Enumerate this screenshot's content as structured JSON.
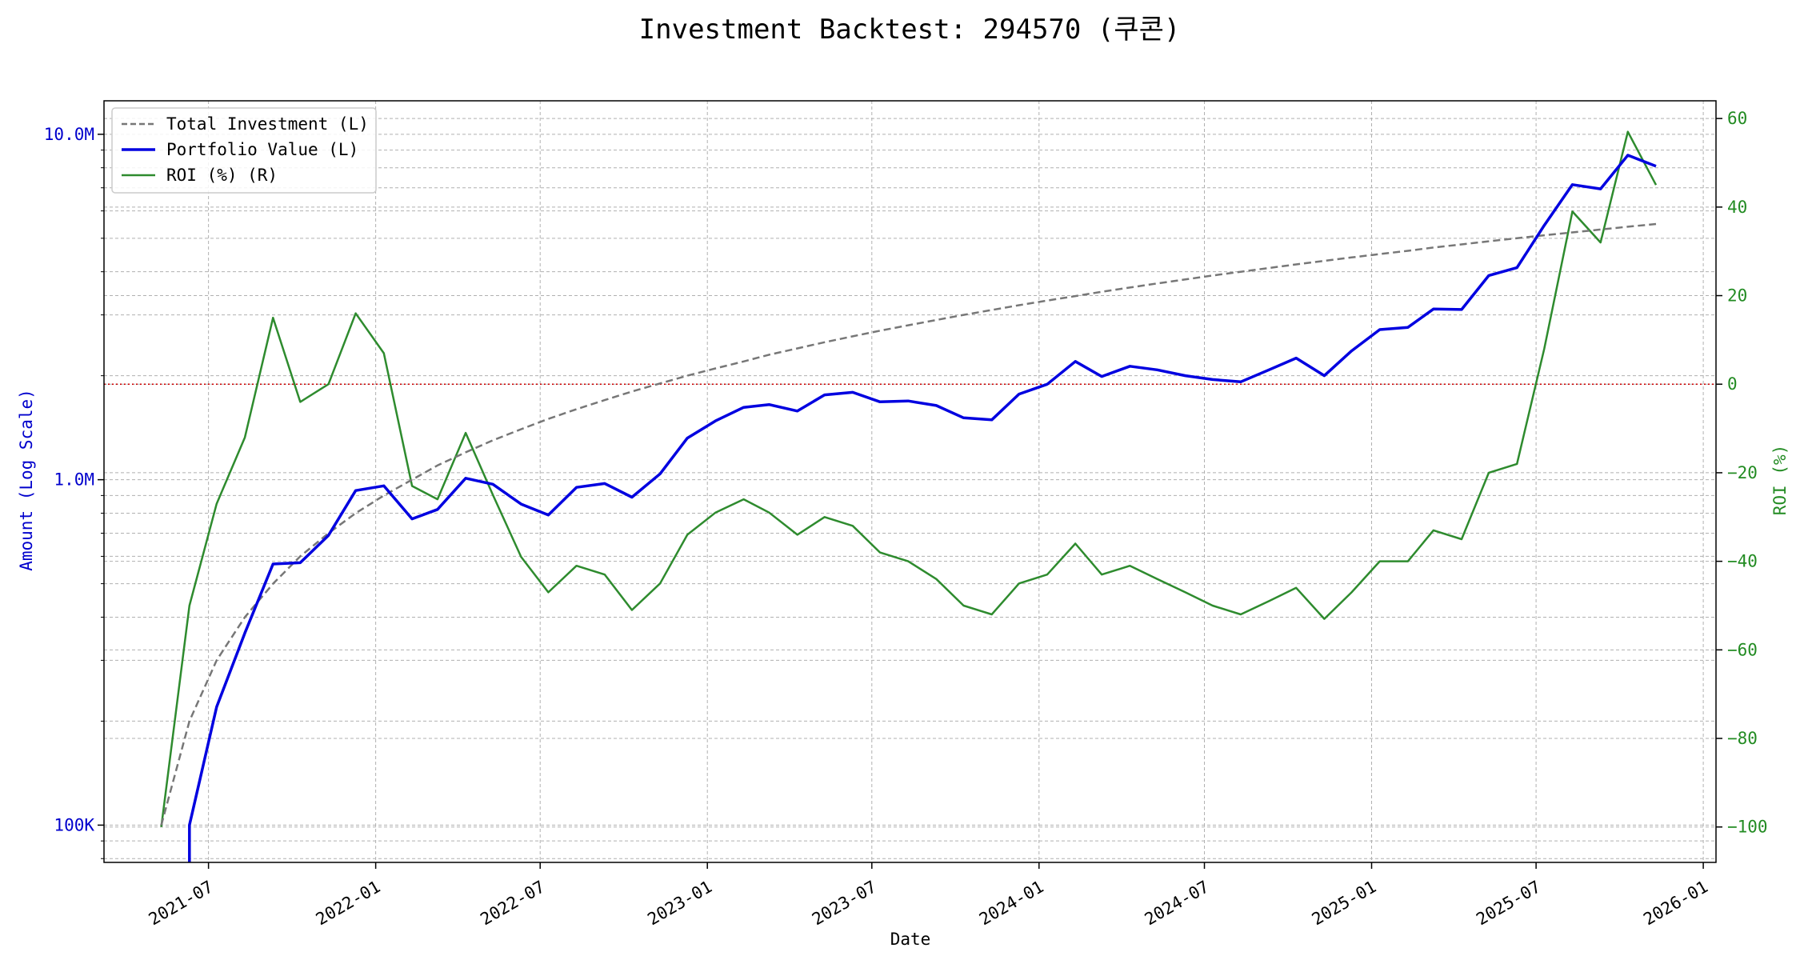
{
  "chart_data": {
    "type": "line",
    "title": "Investment Backtest: 294570 (쿠콘)",
    "xlabel": "Date",
    "ylabel_left": "Amount (Log Scale)",
    "ylabel_right": "ROI (%)",
    "left_axis": {
      "scale": "log",
      "range": [
        78000,
        12500000
      ],
      "ticks": [
        {
          "value": 100000,
          "label": "100K"
        },
        {
          "value": 1000000,
          "label": "1.0M"
        },
        {
          "value": 10000000,
          "label": "10.0M"
        }
      ],
      "color": "#0000cc"
    },
    "right_axis": {
      "scale": "linear",
      "range": [
        -108,
        64
      ],
      "ticks": [
        {
          "value": -100,
          "label": "−100"
        },
        {
          "value": -80,
          "label": "−80"
        },
        {
          "value": -60,
          "label": "−60"
        },
        {
          "value": -40,
          "label": "−40"
        },
        {
          "value": -20,
          "label": "−20"
        },
        {
          "value": 0,
          "label": "0"
        },
        {
          "value": 20,
          "label": "20"
        },
        {
          "value": 40,
          "label": "40"
        },
        {
          "value": 60,
          "label": "60"
        }
      ],
      "color": "#228b22"
    },
    "x_axis": {
      "range": [
        "2021-03-08",
        "2026-01-15"
      ],
      "ticks": [
        "2021-07",
        "2022-01",
        "2022-07",
        "2023-01",
        "2023-07",
        "2024-01",
        "2024-07",
        "2025-01",
        "2025-07",
        "2026-01"
      ]
    },
    "grid": true,
    "legend": {
      "placement": "upper left",
      "entries": [
        "Total Investment (L)",
        "Portfolio Value (L)",
        "ROI (%) (R)"
      ]
    },
    "zero_line": {
      "value": 0,
      "color": "#cc0000"
    },
    "series": [
      {
        "name": "Total Investment (L)",
        "axis": "left",
        "style": "dashed",
        "color": "#777777",
        "x": [
          "2021-05-10",
          "2021-06-10",
          "2021-07-10",
          "2021-08-10",
          "2021-09-10",
          "2021-10-10",
          "2021-11-10",
          "2021-12-10",
          "2022-01-10",
          "2022-02-10",
          "2022-03-10",
          "2022-04-10",
          "2022-05-10",
          "2022-06-10",
          "2022-07-10",
          "2022-08-10",
          "2022-09-10",
          "2022-10-10",
          "2022-11-10",
          "2022-12-10",
          "2023-01-10",
          "2023-02-10",
          "2023-03-10",
          "2023-04-10",
          "2023-05-10",
          "2023-06-10",
          "2023-07-10",
          "2023-08-10",
          "2023-09-10",
          "2023-10-10",
          "2023-11-10",
          "2023-12-10",
          "2024-01-10",
          "2024-02-10",
          "2024-03-10",
          "2024-04-10",
          "2024-05-10",
          "2024-06-10",
          "2024-07-10",
          "2024-08-10",
          "2024-09-10",
          "2024-10-10",
          "2024-11-10",
          "2024-12-10",
          "2025-01-10",
          "2025-02-10",
          "2025-03-10",
          "2025-04-10",
          "2025-05-10",
          "2025-06-10",
          "2025-07-10",
          "2025-08-10",
          "2025-09-10",
          "2025-10-10",
          "2025-11-10"
        ],
        "values": [
          100000,
          200000,
          300000,
          400000,
          500000,
          600000,
          700000,
          800000,
          900000,
          1000000,
          1100000,
          1200000,
          1300000,
          1400000,
          1500000,
          1600000,
          1700000,
          1800000,
          1900000,
          2000000,
          2100000,
          2200000,
          2300000,
          2400000,
          2500000,
          2600000,
          2700000,
          2800000,
          2900000,
          3000000,
          3100000,
          3200000,
          3300000,
          3400000,
          3500000,
          3600000,
          3700000,
          3800000,
          3900000,
          4000000,
          4100000,
          4200000,
          4300000,
          4400000,
          4500000,
          4600000,
          4700000,
          4800000,
          4900000,
          5000000,
          5100000,
          5200000,
          5300000,
          5400000,
          5500000
        ]
      },
      {
        "name": "Portfolio Value (L)",
        "axis": "left",
        "style": "solid",
        "color": "#0000e0",
        "x": [
          "2021-06-10",
          "2021-07-10",
          "2021-08-10",
          "2021-09-10",
          "2021-10-10",
          "2021-11-10",
          "2021-12-10",
          "2022-01-10",
          "2022-02-10",
          "2022-03-10",
          "2022-04-10",
          "2022-05-10",
          "2022-06-10",
          "2022-07-10",
          "2022-08-10",
          "2022-09-10",
          "2022-10-10",
          "2022-11-10",
          "2022-12-10",
          "2023-01-10",
          "2023-02-10",
          "2023-03-10",
          "2023-04-10",
          "2023-05-10",
          "2023-06-10",
          "2023-07-10",
          "2023-08-10",
          "2023-09-10",
          "2023-10-10",
          "2023-11-10",
          "2023-12-10",
          "2024-01-10",
          "2024-02-10",
          "2024-03-10",
          "2024-04-10",
          "2024-05-10",
          "2024-06-10",
          "2024-07-10",
          "2024-08-10",
          "2024-09-10",
          "2024-10-10",
          "2024-11-10",
          "2024-12-10",
          "2025-01-10",
          "2025-02-10",
          "2025-03-10",
          "2025-04-10",
          "2025-05-10",
          "2025-06-10",
          "2025-07-10",
          "2025-08-10",
          "2025-09-10",
          "2025-10-10",
          "2025-11-10"
        ],
        "values": [
          100000,
          220000,
          360000,
          570000,
          575000,
          690000,
          930000,
          960000,
          770000,
          820000,
          1010000,
          970000,
          850000,
          790000,
          950000,
          975000,
          890000,
          1040000,
          1320000,
          1480000,
          1620000,
          1650000,
          1580000,
          1760000,
          1790000,
          1680000,
          1690000,
          1640000,
          1510000,
          1490000,
          1770000,
          1890000,
          2200000,
          1990000,
          2130000,
          2080000,
          2000000,
          1950000,
          1920000,
          2080000,
          2250000,
          2000000,
          2360000,
          2720000,
          2760000,
          3120000,
          3110000,
          3900000,
          4110000,
          5450000,
          7150000,
          6950000,
          8700000,
          8080000
        ]
      },
      {
        "name": "ROI (%) (R)",
        "axis": "right",
        "style": "solid",
        "color": "#2e8b2e",
        "x": [
          "2021-05-10",
          "2021-06-10",
          "2021-07-10",
          "2021-08-10",
          "2021-09-10",
          "2021-10-10",
          "2021-11-10",
          "2021-12-10",
          "2022-01-10",
          "2022-02-10",
          "2022-03-10",
          "2022-04-10",
          "2022-05-10",
          "2022-06-10",
          "2022-07-10",
          "2022-08-10",
          "2022-09-10",
          "2022-10-10",
          "2022-11-10",
          "2022-12-10",
          "2023-01-10",
          "2023-02-10",
          "2023-03-10",
          "2023-04-10",
          "2023-05-10",
          "2023-06-10",
          "2023-07-10",
          "2023-08-10",
          "2023-09-10",
          "2023-10-10",
          "2023-11-10",
          "2023-12-10",
          "2024-01-10",
          "2024-02-10",
          "2024-03-10",
          "2024-04-10",
          "2024-05-10",
          "2024-06-10",
          "2024-07-10",
          "2024-08-10",
          "2024-09-10",
          "2024-10-10",
          "2024-11-10",
          "2024-12-10",
          "2025-01-10",
          "2025-02-10",
          "2025-03-10",
          "2025-04-10",
          "2025-05-10",
          "2025-06-10",
          "2025-07-10",
          "2025-08-10",
          "2025-09-10",
          "2025-10-10",
          "2025-11-10"
        ],
        "values": [
          -100,
          -50,
          -27,
          -12,
          15,
          -4,
          0,
          16,
          7,
          -23,
          -26,
          -11,
          -25,
          -39,
          -47,
          -41,
          -43,
          -51,
          -45,
          -34,
          -29,
          -26,
          -29,
          -34,
          -30,
          -32,
          -38,
          -40,
          -44,
          -50,
          -52,
          -45,
          -43,
          -36,
          -43,
          -41,
          -44,
          -47,
          -50,
          -52,
          -49,
          -46,
          -53,
          -47,
          -40,
          -40,
          -33,
          -35,
          -20,
          -18,
          8,
          39,
          32,
          57,
          45
        ]
      }
    ]
  }
}
